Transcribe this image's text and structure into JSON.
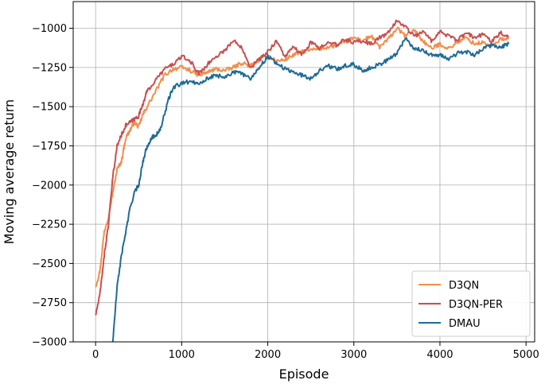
{
  "chart_data": {
    "type": "line",
    "xlabel": "Episode",
    "ylabel": "Moving average return",
    "xlim": [
      -260,
      5100
    ],
    "ylim": [
      -3000,
      -830
    ],
    "xticks": [
      0,
      1000,
      2000,
      3000,
      4000,
      5000
    ],
    "xtick_labels": [
      "0",
      "1000",
      "2000",
      "3000",
      "4000",
      "5000"
    ],
    "yticks": [
      -3000,
      -2750,
      -2500,
      -2250,
      -2000,
      -1750,
      -1500,
      -1250,
      -1000
    ],
    "ytick_labels": [
      "−3000",
      "−2750",
      "−2500",
      "−2250",
      "−2000",
      "−1750",
      "−1500",
      "−1250",
      "−1000"
    ],
    "grid": true,
    "legend_position": "lower-right",
    "series": [
      {
        "name": "D3QN",
        "color": "#f28e4a",
        "x": [
          0,
          50,
          100,
          150,
          200,
          250,
          300,
          350,
          400,
          450,
          500,
          550,
          600,
          700,
          800,
          900,
          1000,
          1100,
          1200,
          1300,
          1400,
          1500,
          1600,
          1700,
          1800,
          1900,
          2000,
          2100,
          2200,
          2300,
          2400,
          2500,
          2600,
          2700,
          2800,
          2900,
          3000,
          3100,
          3200,
          3300,
          3400,
          3500,
          3600,
          3700,
          3800,
          3900,
          4000,
          4100,
          4200,
          4300,
          4400,
          4500,
          4600,
          4700,
          4800
        ],
        "y": [
          -2650,
          -2550,
          -2300,
          -2200,
          -2050,
          -1900,
          -1850,
          -1700,
          -1650,
          -1600,
          -1630,
          -1550,
          -1500,
          -1400,
          -1300,
          -1260,
          -1250,
          -1270,
          -1300,
          -1280,
          -1260,
          -1270,
          -1250,
          -1220,
          -1240,
          -1200,
          -1170,
          -1210,
          -1200,
          -1170,
          -1150,
          -1140,
          -1130,
          -1120,
          -1110,
          -1090,
          -1060,
          -1080,
          -1050,
          -1120,
          -1070,
          -1000,
          -1050,
          -1010,
          -1080,
          -1130,
          -1100,
          -1130,
          -1090,
          -1060,
          -1100,
          -1090,
          -1120,
          -1070,
          -1060
        ]
      },
      {
        "name": "D3QN-PER",
        "color": "#c84f50",
        "x": [
          0,
          50,
          100,
          150,
          200,
          250,
          300,
          350,
          400,
          450,
          500,
          550,
          600,
          700,
          800,
          900,
          1000,
          1100,
          1200,
          1300,
          1400,
          1500,
          1600,
          1700,
          1800,
          1900,
          2000,
          2100,
          2200,
          2300,
          2400,
          2500,
          2600,
          2700,
          2800,
          2900,
          3000,
          3100,
          3200,
          3300,
          3400,
          3500,
          3600,
          3700,
          3800,
          3900,
          4000,
          4100,
          4200,
          4300,
          4400,
          4500,
          4600,
          4700,
          4800
        ],
        "y": [
          -2830,
          -2700,
          -2450,
          -2250,
          -1950,
          -1750,
          -1680,
          -1620,
          -1600,
          -1580,
          -1560,
          -1480,
          -1400,
          -1330,
          -1260,
          -1230,
          -1180,
          -1210,
          -1290,
          -1230,
          -1180,
          -1140,
          -1080,
          -1120,
          -1250,
          -1200,
          -1150,
          -1080,
          -1180,
          -1120,
          -1170,
          -1090,
          -1130,
          -1080,
          -1110,
          -1070,
          -1090,
          -1080,
          -1100,
          -1060,
          -1030,
          -950,
          -990,
          -1050,
          -1020,
          -1080,
          -1020,
          -1050,
          -1080,
          -1030,
          -1060,
          -1040,
          -1080,
          -1030,
          -1050
        ]
      },
      {
        "name": "DMAU",
        "color": "#1f6b96",
        "x": [
          200,
          250,
          300,
          350,
          400,
          450,
          500,
          550,
          600,
          650,
          700,
          750,
          800,
          850,
          900,
          1000,
          1100,
          1200,
          1300,
          1400,
          1500,
          1600,
          1700,
          1800,
          1900,
          2000,
          2100,
          2200,
          2300,
          2400,
          2500,
          2600,
          2700,
          2800,
          2900,
          3000,
          3100,
          3200,
          3300,
          3400,
          3500,
          3600,
          3700,
          3800,
          3900,
          4000,
          4100,
          4200,
          4300,
          4400,
          4500,
          4600,
          4700,
          4800
        ],
        "y": [
          -3000,
          -2650,
          -2450,
          -2300,
          -2150,
          -2050,
          -2000,
          -1850,
          -1750,
          -1700,
          -1680,
          -1650,
          -1550,
          -1450,
          -1380,
          -1350,
          -1340,
          -1350,
          -1320,
          -1300,
          -1310,
          -1280,
          -1290,
          -1320,
          -1250,
          -1180,
          -1220,
          -1260,
          -1280,
          -1300,
          -1320,
          -1270,
          -1240,
          -1260,
          -1240,
          -1230,
          -1270,
          -1250,
          -1230,
          -1200,
          -1160,
          -1060,
          -1130,
          -1140,
          -1170,
          -1170,
          -1200,
          -1160,
          -1150,
          -1170,
          -1130,
          -1110,
          -1120,
          -1100
        ]
      }
    ]
  }
}
